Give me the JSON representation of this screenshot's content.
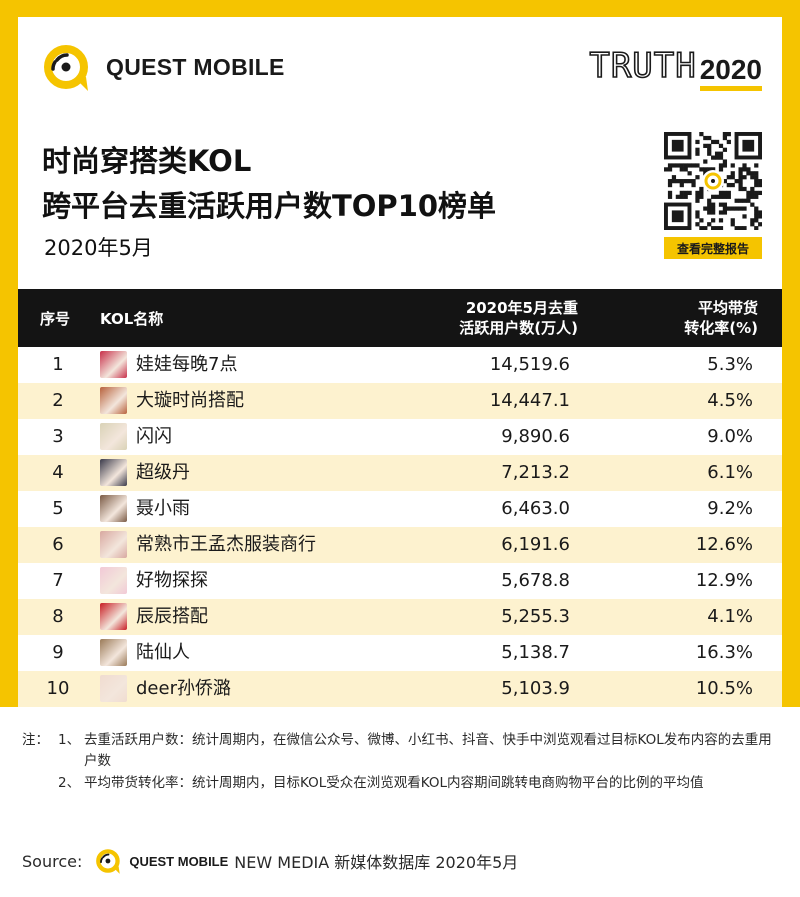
{
  "brand": {
    "name": "QUEST MOBILE",
    "campaign_word": "TRUTH",
    "campaign_year": "2020"
  },
  "title_line1": "时尚穿搭类KOL",
  "title_line2": "跨平台去重活跃用户数TOP10榜单",
  "subtitle": "2020年5月",
  "qr_button": "查看完整报告",
  "colors": {
    "accent": "#f5c400",
    "header_bg": "#141414",
    "zebra": "#fdf2cf"
  },
  "chart_data": {
    "type": "table",
    "columns": [
      "序号",
      "KOL名称",
      "2020年5月去重\n活跃用户数(万人)",
      "平均带货\n转化率(%)"
    ],
    "column_labels": {
      "rank": "序号",
      "name": "KOL名称",
      "users_line1": "2020年5月去重",
      "users_line2": "活跃用户数(万人)",
      "rate_line1": "平均带货",
      "rate_line2": "转化率(%)"
    },
    "rows": [
      {
        "rank": "1",
        "name": "娃娃每晚7点",
        "users": "14,519.6",
        "rate": "5.3%"
      },
      {
        "rank": "2",
        "name": "大璇时尚搭配",
        "users": "14,447.1",
        "rate": "4.5%"
      },
      {
        "rank": "3",
        "name": "闪闪",
        "users": "9,890.6",
        "rate": "9.0%"
      },
      {
        "rank": "4",
        "name": "超级丹",
        "users": "7,213.2",
        "rate": "6.1%"
      },
      {
        "rank": "5",
        "name": "聂小雨",
        "users": "6,463.0",
        "rate": "9.2%"
      },
      {
        "rank": "6",
        "name": "常熟市王孟杰服装商行",
        "users": "6,191.6",
        "rate": "12.6%"
      },
      {
        "rank": "7",
        "name": "好物探探",
        "users": "5,678.8",
        "rate": "12.9%"
      },
      {
        "rank": "8",
        "name": "辰辰搭配",
        "users": "5,255.3",
        "rate": "4.1%"
      },
      {
        "rank": "9",
        "name": "陆仙人",
        "users": "5,138.7",
        "rate": "16.3%"
      },
      {
        "rank": "10",
        "name": "deer孙侨潞",
        "users": "5,103.9",
        "rate": "10.5%"
      }
    ]
  },
  "avatar_colors": [
    "#c8304a",
    "#b8623c",
    "#d9d2b6",
    "#3a3a4a",
    "#7a5a45",
    "#d8a8a0",
    "#f2c9d6",
    "#c81e24",
    "#9a7a58",
    "#f0dcd0"
  ],
  "notes": {
    "prefix": "注：",
    "items": [
      {
        "num": "1、",
        "text": "去重活跃用户数：统计周期内，在微信公众号、微博、小红书、抖音、快手中浏览观看过目标KOL发布内容的去重用户数"
      },
      {
        "num": "2、",
        "text": "平均带货转化率：统计周期内，目标KOL受众在浏览观看KOL内容期间跳转电商购物平台的比例的平均值"
      }
    ]
  },
  "source": {
    "label": "Source:",
    "brand": "QUEST MOBILE",
    "text": "NEW MEDIA 新媒体数据库 2020年5月"
  }
}
